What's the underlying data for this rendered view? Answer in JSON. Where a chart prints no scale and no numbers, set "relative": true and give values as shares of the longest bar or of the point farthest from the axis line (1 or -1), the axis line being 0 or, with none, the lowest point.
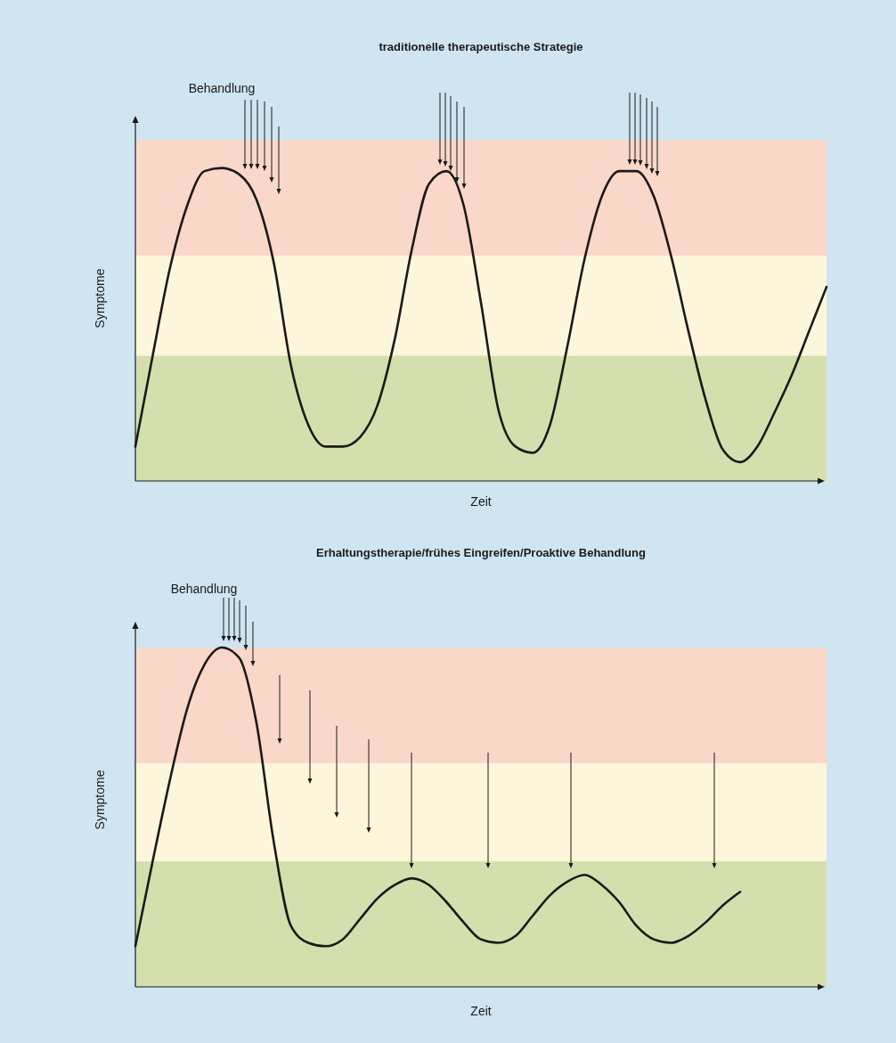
{
  "chart_data": [
    {
      "type": "line",
      "title": "traditionelle therapeutische Strategie",
      "xlabel": "Zeit",
      "ylabel": "Symptome",
      "relative": true,
      "categories": [
        null,
        null,
        null,
        null,
        null,
        null,
        null,
        null,
        null,
        null,
        null,
        null,
        null,
        null,
        null,
        null,
        null,
        null,
        null,
        null,
        null,
        null,
        null,
        null,
        null,
        null,
        null,
        null,
        null,
        null,
        null,
        null,
        null,
        null,
        null,
        null,
        null,
        null,
        null,
        null,
        null
      ],
      "series": [
        {
          "color": "#1a1a1a",
          "values": [
            0.11,
            0.4,
            0.68,
            0.88,
            0.99,
            1,
            0.98,
            0.9,
            0.7,
            0.37,
            0.18,
            0.11,
            0.11,
            0.14,
            0.24,
            0.45,
            0.74,
            0.95,
            0.99,
            0.88,
            0.57,
            0.23,
            0.11,
            0.09,
            0.18,
            0.43,
            0.71,
            0.91,
            0.99,
            0.99,
            0.91,
            0.72,
            0.48,
            0.26,
            0.1,
            0.06,
            0.11,
            0.22,
            0.34,
            0.48,
            0.62
          ]
        }
      ],
      "bands": [
        {
          "axis": "y",
          "from": 0,
          "to": 0.4,
          "color": "#d5dfae"
        },
        {
          "axis": "y",
          "from": 0.4,
          "to": 0.72,
          "color": "#fdf6da"
        },
        {
          "axis": "y",
          "from": 0.72,
          "to": 1.09,
          "color": "#f9d8c9"
        }
      ],
      "annotations": [
        "Behandlung"
      ]
    },
    {
      "type": "line",
      "title": "Erhaltungstherapie/frühes Eingreifen/Proaktive Behandlung",
      "xlabel": "Zeit",
      "ylabel": "Symptome",
      "relative": true,
      "categories": [
        null,
        null,
        null,
        null,
        null,
        null,
        null,
        null,
        null,
        null,
        null,
        null,
        null,
        null,
        null,
        null,
        null,
        null,
        null,
        null,
        null,
        null,
        null,
        null,
        null,
        null,
        null,
        null,
        null,
        null,
        null,
        null,
        null,
        null,
        null,
        null,
        null,
        null,
        null,
        null,
        null
      ],
      "series": [
        {
          "color": "#1a1a1a",
          "values": [
            0.12,
            0.37,
            0.61,
            0.82,
            0.95,
            1.0,
            0.97,
            0.78,
            0.43,
            0.18,
            0.13,
            0.12,
            0.14,
            0.2,
            0.26,
            0.3,
            0.32,
            0.3,
            0.25,
            0.19,
            0.14,
            0.13,
            0.15,
            0.21,
            0.27,
            0.31,
            0.33,
            0.3,
            0.25,
            0.18,
            0.14,
            0.13,
            0.15,
            0.19,
            0.24,
            0.28,
            null,
            null,
            null,
            null,
            null
          ]
        }
      ],
      "bands": [
        {
          "axis": "y",
          "from": 0,
          "to": 0.37,
          "color": "#d5dfae"
        },
        {
          "axis": "y",
          "from": 0.37,
          "to": 0.66,
          "color": "#fdf6da"
        },
        {
          "axis": "y",
          "from": 0.66,
          "to": 1.0,
          "color": "#f9d8c9"
        }
      ],
      "annotations": [
        "Behandlung"
      ]
    }
  ]
}
